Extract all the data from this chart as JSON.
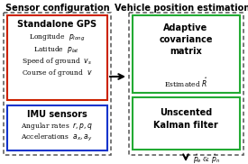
{
  "title_left": "Sensor configuration",
  "title_right": "Vehicle position estimation",
  "gps_title": "Standalone GPS",
  "gps_lines": [
    "Longitude  $p_{long}$",
    "Latitude  $p_{lat}$",
    "Speed of ground  $v_s$",
    "Course of ground  $v$"
  ],
  "imu_title": "IMU sensors",
  "imu_lines": [
    "Angular rates  $r, p, q$",
    "Accelerations  $a_x, a_y$"
  ],
  "acm_title": "Adaptive\ncovariance\nmatrix",
  "acm_sub": "Estimated $\\hat{R}$",
  "ukf_title": "Unscented\nKalman filter",
  "output_label": "$\\hat{p}_e$ & $\\hat{p}_n$",
  "color_outer_left": "#555555",
  "color_gps_box": "#cc2200",
  "color_imu_box": "#1133cc",
  "color_right_outer": "#555555",
  "color_acm_box": "#22aa33",
  "color_ukf_box": "#22aa33"
}
